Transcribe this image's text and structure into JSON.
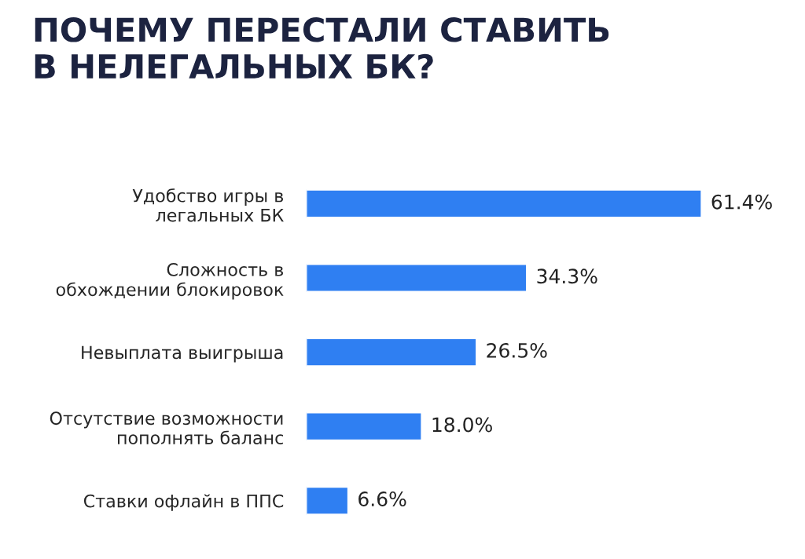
{
  "chart_data": {
    "type": "bar",
    "orientation": "horizontal",
    "title": "ПОЧЕМУ ПЕРЕСТАЛИ СТАВИТЬ\nВ НЕЛЕГАЛЬНЫХ БК?",
    "categories": [
      "Удобство игры в\nлегальных БК",
      "Сложность в\nобхождении блокировок",
      "Невыплата выигрыша",
      "Отсутствие возможности\nпополнять баланс",
      "Ставки офлайн в ППС"
    ],
    "values": [
      61.4,
      34.3,
      26.5,
      18.0,
      6.6
    ],
    "value_labels": [
      "61.4%",
      "34.3%",
      "26.5%",
      "18.0%",
      "6.6%"
    ],
    "color": "#2f7ff2",
    "grid": false,
    "legend": false
  }
}
